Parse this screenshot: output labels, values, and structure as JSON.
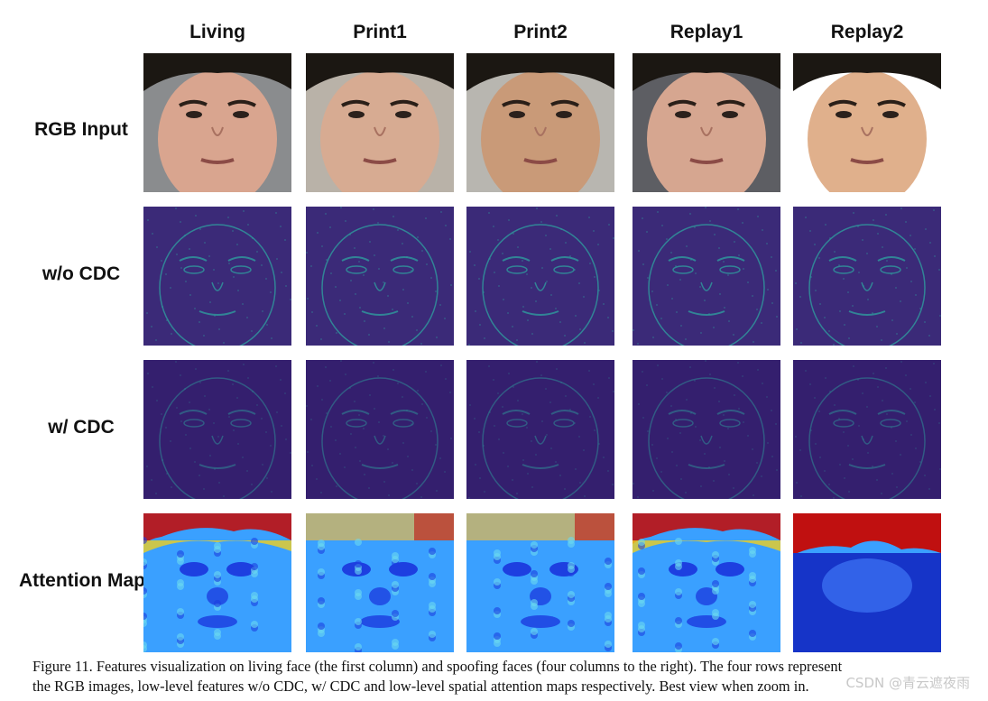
{
  "columns": [
    "Living",
    "Print1",
    "Print2",
    "Replay1",
    "Replay2"
  ],
  "rows": [
    {
      "label": "RGB Input",
      "kind": "rgb"
    },
    {
      "label": "w/o CDC",
      "kind": "feature"
    },
    {
      "label": "w/ CDC",
      "kind": "feature-dark"
    },
    {
      "label": "Attention Map",
      "kind": "attention"
    }
  ],
  "caption": {
    "line1": "Figure 11.  Features visualization on living face (the first column) and spoofing faces (four columns to the right). The four rows represent",
    "line2": "the RGB images, low-level features w/o CDC, w/ CDC and low-level spatial attention maps respectively. Best view when zoom in."
  },
  "watermark": "CSDN @青云遮夜雨",
  "colors": {
    "feature_bg": "#3b2a78",
    "feature_dark_bg": "#341f6e",
    "feature_line": "#2fa3a0",
    "attention_bg": "#3aa0ff",
    "attention_hot": "#c01010"
  }
}
